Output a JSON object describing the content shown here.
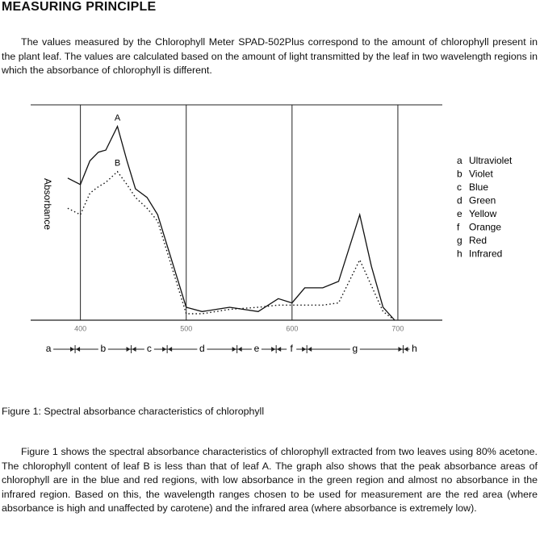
{
  "heading": "MEASURING PRINCIPLE",
  "intro": "The values measured by the Chlorophyll Meter SPAD-502Plus correspond to the amount of chlorophyll present in the plant leaf. The values are calculated based on the amount of light transmitted by the leaf in two wavelength regions in which the absorbance of chlorophyll is different.",
  "chart_data": {
    "type": "line",
    "y_label": "Absorbance",
    "x": [
      388,
      400,
      409,
      417,
      424,
      435,
      444,
      452,
      463,
      473,
      500,
      515,
      541,
      568,
      587,
      600,
      612,
      629,
      644,
      664,
      675,
      686,
      697
    ],
    "series": [
      {
        "name": "A",
        "color": "#111111",
        "line_style": "solid",
        "values": [
          66,
          63,
          74,
          78,
          79,
          90,
          74,
          61,
          57,
          49,
          6,
          4,
          6,
          4,
          10,
          8,
          15,
          15,
          18,
          49,
          25,
          6,
          0
        ]
      },
      {
        "name": "B",
        "color": "#111111",
        "line_style": "dotted",
        "values": [
          52,
          49,
          59,
          62,
          64,
          69,
          63,
          57,
          52,
          46,
          3,
          3,
          5,
          6,
          7,
          7,
          7,
          7,
          8,
          28,
          16,
          4,
          0
        ]
      }
    ],
    "xlim": [
      353,
      742
    ],
    "ylim": [
      0,
      100
    ],
    "xticks": [
      400,
      500,
      600,
      700
    ],
    "grid": true,
    "band_edges": [
      395,
      448,
      482,
      548,
      585,
      614,
      705
    ],
    "bands": [
      {
        "letter": "a",
        "name": "Ultraviolet"
      },
      {
        "letter": "b",
        "name": "Violet"
      },
      {
        "letter": "c",
        "name": "Blue"
      },
      {
        "letter": "d",
        "name": "Green"
      },
      {
        "letter": "e",
        "name": "Yellow"
      },
      {
        "letter": "f",
        "name": "Orange"
      },
      {
        "letter": "g",
        "name": "Red"
      },
      {
        "letter": "h",
        "name": "Infrared"
      }
    ]
  },
  "caption": "Figure 1: Spectral absorbance characteristics of chlorophyll",
  "body": "Figure 1 shows the spectral absorbance characteristics of chlorophyll extracted from two leaves using 80% acetone. The chlorophyll content of leaf B is less than that of leaf A. The graph also shows that the peak absorbance areas of chlorophyll are in the blue and red regions, with low absorbance in the green region and almost no absorbance in the infrared region. Based on this, the wavelength ranges chosen to be used for measurement are the red area (where absorbance is high and unaffected by carotene) and the infrared area (where absorbance is extremely low)."
}
